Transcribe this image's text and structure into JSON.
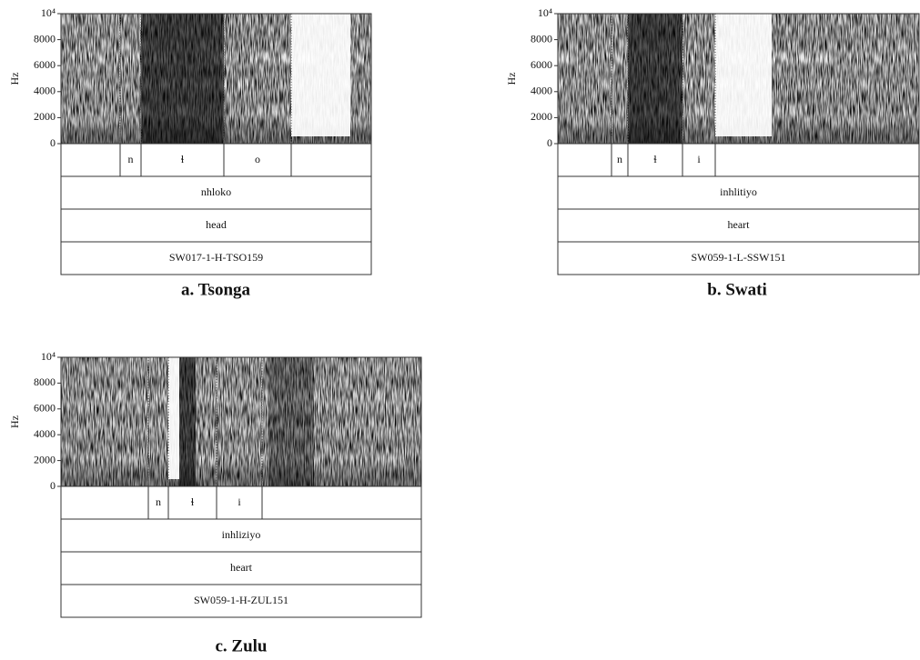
{
  "panels": [
    {
      "caption": "a. Tsonga",
      "y_label": "Hz",
      "ylim": [
        0,
        10000
      ],
      "yticks": [
        0,
        2000,
        4000,
        6000,
        8000,
        {
          "value": 10000,
          "label": "10⁴"
        }
      ],
      "segments": [
        "n",
        "ɬ",
        "o"
      ],
      "word": "nhloko",
      "gloss": "head",
      "code": "SW017-1-H-TSO159"
    },
    {
      "caption": "b. Swati",
      "y_label": "Hz",
      "ylim": [
        0,
        10000
      ],
      "yticks": [
        0,
        2000,
        4000,
        6000,
        8000,
        {
          "value": 10000,
          "label": "10⁴"
        }
      ],
      "segments": [
        "n",
        "ɬ",
        "i"
      ],
      "word": "inhlitiyo",
      "gloss": "heart",
      "code": "SW059-1-L-SSW151"
    },
    {
      "caption": "c. Zulu",
      "y_label": "Hz",
      "ylim": [
        0,
        10000
      ],
      "yticks": [
        0,
        2000,
        4000,
        6000,
        8000,
        {
          "value": 10000,
          "label": "10⁴"
        }
      ],
      "segments": [
        "n",
        "ɬ",
        "i"
      ],
      "word": "inhliziyo",
      "gloss": "heart",
      "code": "SW059-1-H-ZUL151"
    }
  ]
}
